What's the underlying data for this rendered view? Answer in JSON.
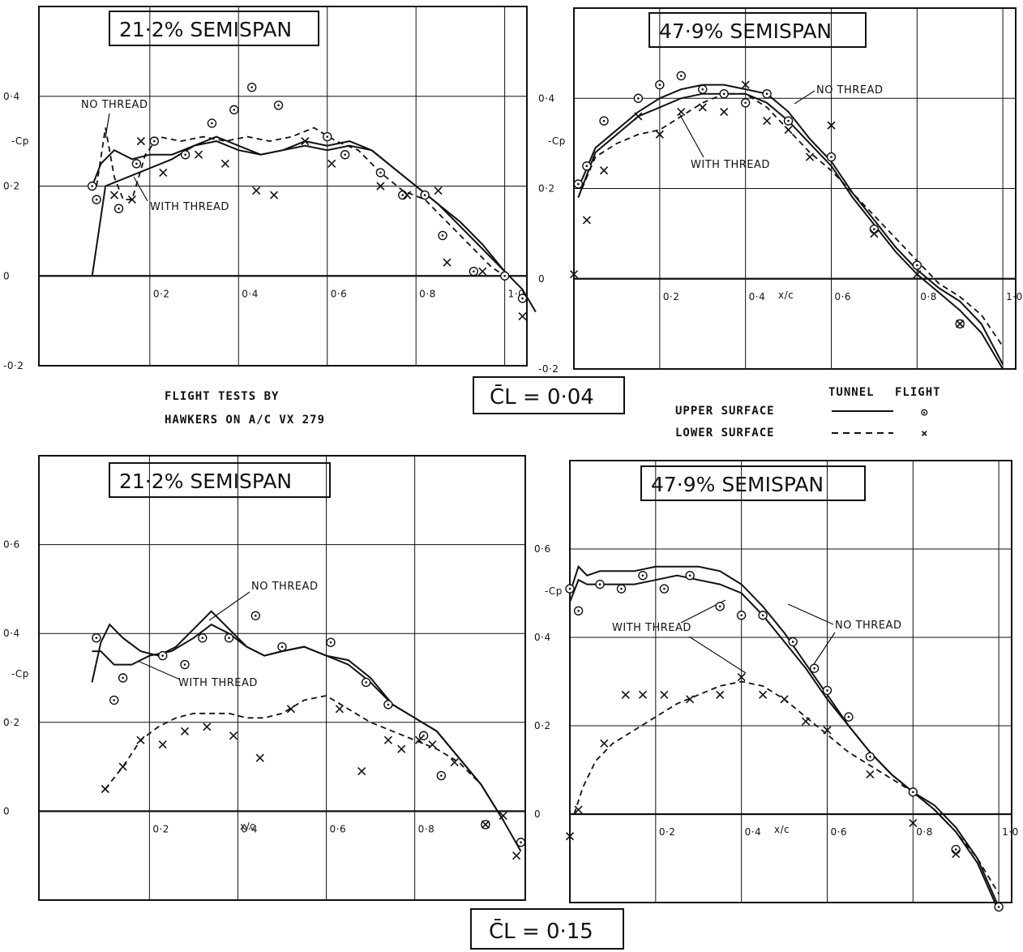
{
  "chart_data": [
    {
      "type": "line",
      "title": "21·2% SEMISPAN",
      "ylabel": "-Cp",
      "xlim": [
        -0.05,
        1.05
      ],
      "ylim": [
        -0.2,
        0.6
      ],
      "x_ticks": [
        "0·2",
        "0·4",
        "0·6",
        "0·8",
        "1·0"
      ],
      "y_ticks": [
        "0·4",
        "0·2",
        "0",
        "-0·2"
      ],
      "annotations": [
        "NO THREAD",
        "WITH THREAD"
      ],
      "series": [
        {
          "name": "NO THREAD",
          "style": "solid",
          "x": [
            0.07,
            0.09,
            0.12,
            0.16,
            0.2,
            0.25,
            0.3,
            0.35,
            0.4,
            0.45,
            0.5,
            0.55,
            0.6,
            0.65,
            0.7,
            0.75,
            0.8,
            0.85,
            0.9,
            0.95,
            1.0,
            1.04,
            1.07
          ],
          "y": [
            0.2,
            0.25,
            0.28,
            0.26,
            0.27,
            0.27,
            0.29,
            0.31,
            0.29,
            0.27,
            0.28,
            0.3,
            0.29,
            0.3,
            0.28,
            0.24,
            0.2,
            0.16,
            0.11,
            0.06,
            0.01,
            -0.03,
            -0.08
          ]
        },
        {
          "name": "WITH THREAD",
          "style": "solid",
          "x": [
            0.07,
            0.1,
            0.15,
            0.2,
            0.25,
            0.3,
            0.35,
            0.4,
            0.45,
            0.5,
            0.55,
            0.6,
            0.65,
            0.7,
            0.75,
            0.8,
            0.85,
            0.9,
            0.95,
            1.0
          ],
          "y": [
            0.0,
            0.2,
            0.22,
            0.24,
            0.26,
            0.29,
            0.3,
            0.28,
            0.27,
            0.28,
            0.29,
            0.28,
            0.29,
            0.28,
            0.24,
            0.2,
            0.16,
            0.12,
            0.07,
            0.01
          ]
        },
        {
          "name": "LOWER SURFACE",
          "style": "dashed",
          "x": [
            0.08,
            0.1,
            0.12,
            0.14,
            0.16,
            0.19,
            0.22,
            0.27,
            0.32,
            0.37,
            0.42,
            0.47,
            0.52,
            0.57,
            0.62,
            0.67,
            0.72,
            0.77,
            0.82,
            0.87,
            0.92,
            0.97,
            1.0
          ],
          "y": [
            0.2,
            0.33,
            0.22,
            0.17,
            0.17,
            0.27,
            0.31,
            0.3,
            0.31,
            0.3,
            0.31,
            0.3,
            0.31,
            0.33,
            0.3,
            0.28,
            0.23,
            0.19,
            0.17,
            0.12,
            0.07,
            0.02,
            0.0
          ]
        }
      ],
      "upper_points": {
        "x": [
          0.07,
          0.08,
          0.13,
          0.17,
          0.21,
          0.28,
          0.34,
          0.39,
          0.43,
          0.49,
          0.6,
          0.64,
          0.72,
          0.77,
          0.82,
          0.86,
          0.93,
          1.0,
          1.04
        ],
        "y": [
          0.2,
          0.17,
          0.15,
          0.25,
          0.3,
          0.27,
          0.34,
          0.37,
          0.42,
          0.38,
          0.31,
          0.27,
          0.23,
          0.18,
          0.18,
          0.09,
          0.01,
          0.0,
          -0.05
        ]
      },
      "lower_points": {
        "x": [
          0.12,
          0.16,
          0.18,
          0.23,
          0.31,
          0.37,
          0.44,
          0.48,
          0.55,
          0.61,
          0.72,
          0.78,
          0.85,
          0.87,
          0.95,
          1.04
        ],
        "y": [
          0.18,
          0.17,
          0.3,
          0.23,
          0.27,
          0.25,
          0.19,
          0.18,
          0.3,
          0.25,
          0.2,
          0.18,
          0.19,
          0.03,
          0.01,
          -0.09
        ]
      }
    },
    {
      "type": "line",
      "title": "47·9% SEMISPAN",
      "ylabel": "-Cp",
      "xlabel": "x/c",
      "xlim": [
        0,
        1.03
      ],
      "ylim": [
        -0.2,
        0.6
      ],
      "x_ticks": [
        "0·2",
        "0·4",
        "0·6",
        "0·8",
        "1·0"
      ],
      "y_ticks": [
        "0·4",
        "0·2",
        "0",
        "-0·2"
      ],
      "annotations": [
        "NO THREAD",
        "WITH THREAD"
      ],
      "series": [
        {
          "name": "NO THREAD",
          "style": "solid",
          "x": [
            0.01,
            0.05,
            0.1,
            0.15,
            0.2,
            0.25,
            0.3,
            0.35,
            0.4,
            0.45,
            0.5,
            0.55,
            0.6,
            0.65,
            0.7,
            0.75,
            0.8,
            0.85,
            0.9,
            0.95,
            1.0
          ],
          "y": [
            0.2,
            0.29,
            0.33,
            0.37,
            0.4,
            0.42,
            0.43,
            0.43,
            0.42,
            0.41,
            0.37,
            0.31,
            0.26,
            0.19,
            0.13,
            0.07,
            0.02,
            -0.02,
            -0.05,
            -0.1,
            -0.19
          ]
        },
        {
          "name": "WITH THREAD",
          "style": "solid",
          "x": [
            0.01,
            0.05,
            0.1,
            0.15,
            0.2,
            0.25,
            0.3,
            0.35,
            0.4,
            0.45,
            0.5,
            0.55,
            0.6,
            0.65,
            0.7,
            0.75,
            0.8,
            0.85,
            0.9,
            0.95,
            1.0
          ],
          "y": [
            0.18,
            0.28,
            0.32,
            0.36,
            0.38,
            0.4,
            0.41,
            0.41,
            0.41,
            0.39,
            0.35,
            0.3,
            0.25,
            0.18,
            0.12,
            0.06,
            0.01,
            -0.03,
            -0.07,
            -0.12,
            -0.2
          ]
        },
        {
          "name": "LOWER SURFACE",
          "style": "dashed",
          "x": [
            0.01,
            0.05,
            0.1,
            0.15,
            0.2,
            0.25,
            0.3,
            0.35,
            0.4,
            0.45,
            0.5,
            0.55,
            0.6,
            0.65,
            0.7,
            0.75,
            0.8,
            0.85,
            0.9,
            0.95,
            1.0
          ],
          "y": [
            0.18,
            0.27,
            0.3,
            0.32,
            0.33,
            0.36,
            0.39,
            0.41,
            0.41,
            0.38,
            0.33,
            0.28,
            0.24,
            0.19,
            0.14,
            0.09,
            0.04,
            -0.01,
            -0.04,
            -0.08,
            -0.15
          ]
        }
      ],
      "upper_points": {
        "x": [
          0.01,
          0.03,
          0.07,
          0.15,
          0.2,
          0.25,
          0.3,
          0.35,
          0.4,
          0.45,
          0.5,
          0.6,
          0.7,
          0.8,
          0.9
        ],
        "y": [
          0.21,
          0.25,
          0.35,
          0.4,
          0.43,
          0.45,
          0.42,
          0.41,
          0.39,
          0.41,
          0.35,
          0.27,
          0.11,
          0.03,
          -0.1
        ]
      },
      "lower_points": {
        "x": [
          0.0,
          0.03,
          0.07,
          0.15,
          0.2,
          0.25,
          0.3,
          0.35,
          0.4,
          0.45,
          0.5,
          0.55,
          0.6,
          0.7,
          0.8,
          0.9
        ],
        "y": [
          0.01,
          0.13,
          0.24,
          0.36,
          0.32,
          0.37,
          0.38,
          0.37,
          0.43,
          0.35,
          0.33,
          0.27,
          0.34,
          0.1,
          0.01,
          -0.1
        ]
      }
    },
    {
      "type": "line",
      "title": "21·2% SEMISPAN",
      "ylabel": "-Cp",
      "xlabel": "x/c",
      "xlim": [
        -0.05,
        1.05
      ],
      "ylim": [
        -0.2,
        0.8
      ],
      "x_ticks": [
        "0·2",
        "0·4",
        "0·6",
        "0·8"
      ],
      "y_ticks": [
        "0·6",
        "0·4",
        "0·2",
        "0"
      ],
      "annotations": [
        "NO THREAD",
        "WITH THREAD"
      ],
      "series": [
        {
          "name": "NO THREAD",
          "style": "solid",
          "x": [
            0.07,
            0.09,
            0.11,
            0.14,
            0.18,
            0.22,
            0.26,
            0.3,
            0.34,
            0.38,
            0.42,
            0.46,
            0.5,
            0.55,
            0.6,
            0.65,
            0.7,
            0.75,
            0.8,
            0.85,
            0.9,
            0.95,
            1.0,
            1.04
          ],
          "y": [
            0.29,
            0.38,
            0.42,
            0.39,
            0.36,
            0.35,
            0.37,
            0.41,
            0.45,
            0.41,
            0.37,
            0.35,
            0.36,
            0.37,
            0.35,
            0.34,
            0.3,
            0.24,
            0.21,
            0.18,
            0.12,
            0.06,
            -0.02,
            -0.09
          ]
        },
        {
          "name": "WITH THREAD",
          "style": "solid",
          "x": [
            0.07,
            0.09,
            0.12,
            0.16,
            0.2,
            0.25,
            0.3,
            0.34,
            0.38,
            0.42,
            0.46,
            0.5,
            0.55,
            0.6,
            0.65,
            0.7,
            0.75,
            0.8,
            0.85,
            0.9,
            0.95,
            1.0
          ],
          "y": [
            0.36,
            0.36,
            0.33,
            0.33,
            0.35,
            0.36,
            0.39,
            0.42,
            0.4,
            0.37,
            0.35,
            0.36,
            0.37,
            0.35,
            0.33,
            0.29,
            0.24,
            0.21,
            0.18,
            0.12,
            0.06,
            -0.02
          ]
        },
        {
          "name": "LOWER SURFACE",
          "style": "dashed",
          "x": [
            0.1,
            0.14,
            0.18,
            0.22,
            0.26,
            0.3,
            0.34,
            0.38,
            0.42,
            0.46,
            0.5,
            0.55,
            0.6,
            0.65,
            0.7,
            0.75,
            0.8,
            0.85,
            0.9,
            0.95,
            1.0
          ],
          "y": [
            0.05,
            0.1,
            0.16,
            0.19,
            0.21,
            0.22,
            0.22,
            0.22,
            0.21,
            0.21,
            0.22,
            0.25,
            0.26,
            0.23,
            0.2,
            0.18,
            0.16,
            0.14,
            0.11,
            0.06,
            -0.02
          ]
        }
      ],
      "upper_points": {
        "x": [
          0.08,
          0.12,
          0.14,
          0.23,
          0.28,
          0.32,
          0.38,
          0.44,
          0.5,
          0.61,
          0.69,
          0.74,
          0.82,
          0.86,
          0.96,
          1.04
        ],
        "y": [
          0.39,
          0.25,
          0.3,
          0.35,
          0.33,
          0.39,
          0.39,
          0.44,
          0.37,
          0.38,
          0.29,
          0.24,
          0.17,
          0.08,
          -0.03,
          -0.07
        ]
      },
      "lower_points": {
        "x": [
          0.1,
          0.14,
          0.18,
          0.23,
          0.28,
          0.33,
          0.39,
          0.45,
          0.52,
          0.63,
          0.68,
          0.74,
          0.77,
          0.81,
          0.84,
          0.89,
          0.96,
          1.0,
          1.03
        ],
        "y": [
          0.05,
          0.1,
          0.16,
          0.15,
          0.18,
          0.19,
          0.17,
          0.12,
          0.23,
          0.23,
          0.09,
          0.16,
          0.14,
          0.16,
          0.15,
          0.11,
          -0.03,
          -0.01,
          -0.1
        ]
      }
    },
    {
      "type": "line",
      "title": "47·9% SEMISPAN",
      "ylabel": "-Cp",
      "xlabel": "x/c",
      "xlim": [
        0,
        1.03
      ],
      "ylim": [
        -0.2,
        0.8
      ],
      "x_ticks": [
        "0·2",
        "0·4",
        "0·6",
        "0·8",
        "1·0"
      ],
      "y_ticks": [
        "0·6",
        "0·4",
        "0·2",
        "0"
      ],
      "annotations": [
        "WITH THREAD",
        "NO THREAD"
      ],
      "series": [
        {
          "name": "NO THREAD",
          "style": "solid",
          "x": [
            0.0,
            0.02,
            0.04,
            0.07,
            0.1,
            0.15,
            0.2,
            0.25,
            0.3,
            0.35,
            0.4,
            0.45,
            0.5,
            0.55,
            0.6,
            0.65,
            0.7,
            0.75,
            0.8,
            0.85,
            0.9,
            0.95,
            1.0
          ],
          "y": [
            0.5,
            0.56,
            0.54,
            0.55,
            0.55,
            0.55,
            0.56,
            0.56,
            0.56,
            0.55,
            0.52,
            0.47,
            0.41,
            0.34,
            0.27,
            0.2,
            0.14,
            0.09,
            0.05,
            0.02,
            -0.03,
            -0.1,
            -0.21
          ]
        },
        {
          "name": "WITH THREAD",
          "style": "solid",
          "x": [
            0.0,
            0.02,
            0.04,
            0.07,
            0.1,
            0.15,
            0.2,
            0.25,
            0.3,
            0.35,
            0.4,
            0.45,
            0.5,
            0.55,
            0.6,
            0.65,
            0.7,
            0.75,
            0.8,
            0.85,
            0.9,
            0.95,
            1.0
          ],
          "y": [
            0.48,
            0.53,
            0.52,
            0.52,
            0.52,
            0.52,
            0.53,
            0.54,
            0.53,
            0.52,
            0.5,
            0.45,
            0.39,
            0.33,
            0.26,
            0.2,
            0.14,
            0.09,
            0.05,
            0.01,
            -0.04,
            -0.11,
            -0.22
          ]
        },
        {
          "name": "LOWER SURFACE",
          "style": "dashed",
          "x": [
            0.01,
            0.03,
            0.06,
            0.1,
            0.15,
            0.2,
            0.25,
            0.3,
            0.35,
            0.4,
            0.45,
            0.5,
            0.55,
            0.6,
            0.65,
            0.7,
            0.75,
            0.8,
            0.85,
            0.9,
            0.95,
            1.0
          ],
          "y": [
            0.0,
            0.06,
            0.12,
            0.16,
            0.19,
            0.22,
            0.25,
            0.27,
            0.29,
            0.3,
            0.29,
            0.26,
            0.22,
            0.18,
            0.14,
            0.11,
            0.08,
            0.05,
            0.01,
            -0.04,
            -0.1,
            -0.18
          ]
        }
      ],
      "upper_points": {
        "x": [
          0.0,
          0.02,
          0.07,
          0.12,
          0.17,
          0.22,
          0.28,
          0.35,
          0.4,
          0.45,
          0.52,
          0.57,
          0.6,
          0.65,
          0.7,
          0.8,
          0.9,
          1.0
        ],
        "y": [
          0.51,
          0.46,
          0.52,
          0.51,
          0.54,
          0.51,
          0.54,
          0.47,
          0.45,
          0.45,
          0.39,
          0.33,
          0.28,
          0.22,
          0.13,
          0.05,
          -0.08,
          -0.21
        ]
      },
      "lower_points": {
        "x": [
          0.0,
          0.02,
          0.08,
          0.13,
          0.17,
          0.22,
          0.28,
          0.35,
          0.4,
          0.45,
          0.5,
          0.55,
          0.6,
          0.7,
          0.8,
          0.9
        ],
        "y": [
          -0.05,
          0.01,
          0.16,
          0.27,
          0.27,
          0.27,
          0.26,
          0.27,
          0.31,
          0.27,
          0.26,
          0.21,
          0.19,
          0.09,
          -0.02,
          -0.09
        ]
      }
    }
  ],
  "notes": {
    "flight_tests_line1": "FLIGHT TESTS BY",
    "flight_tests_line2": "HAWKERS ON A/C VX 279"
  },
  "legend": {
    "header_tunnel": "TUNNEL",
    "header_flight": "FLIGHT",
    "upper_label": "UPPER SURFACE",
    "lower_label": "LOWER SURFACE",
    "upper_flight_symbol": "⊙",
    "lower_flight_symbol": "×"
  },
  "cl_labels": {
    "top": "C̄L = 0·04",
    "bottom": "C̄L = 0·15"
  }
}
